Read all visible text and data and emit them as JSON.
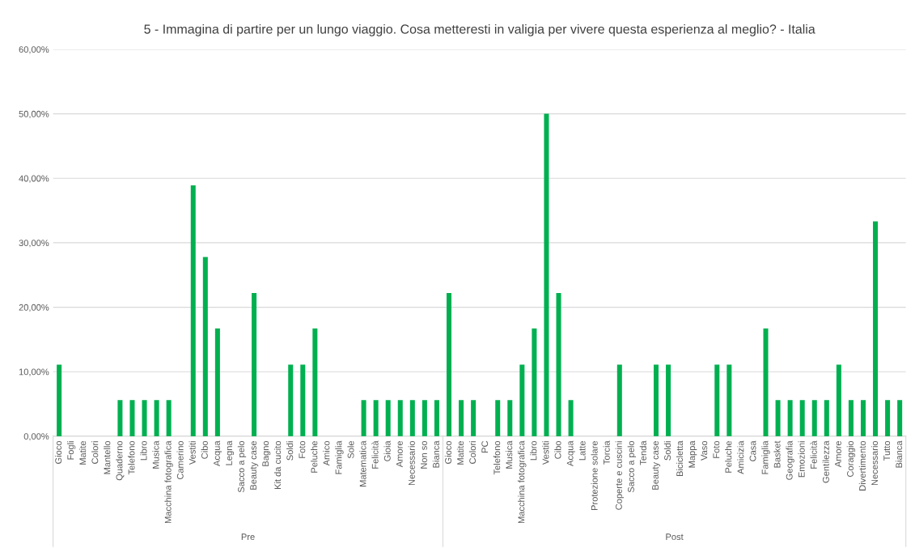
{
  "chart_data": {
    "type": "bar",
    "title": "5 - Immagina di partire per un lungo viaggio. Cosa metteresti in valigia per vivere questa esperienza al meglio? - Italia",
    "categories": [
      "Gioco",
      "Fogli",
      "Matite",
      "Colori",
      "Mantello",
      "Quaderno",
      "Telefono",
      "Libro",
      "Musica",
      "Macchina fotografica",
      "Camerino",
      "Vestiti",
      "Cibo",
      "Acqua",
      "Legna",
      "Sacco a pelo",
      "Beauty case",
      "Bagno",
      "Kit da cucito",
      "Soldi",
      "Foto",
      "Peluche",
      "Amico",
      "Famiglia",
      "Sole",
      "Matematica",
      "Felicità",
      "Gioia",
      "Amore",
      "Necessario",
      "Non so",
      "Bianca",
      "Gioco",
      "Matite",
      "Colori",
      "PC",
      "Telefono",
      "Musica",
      "Macchina fotografica",
      "Libro",
      "Vestiti",
      "Cibo",
      "Acqua",
      "Latte",
      "Protezione solare",
      "Torcia",
      "Coperte e cuscini",
      "Sacco a pelo",
      "Tenda",
      "Beauty case",
      "Soldi",
      "Bicicletta",
      "Mappa",
      "Vaso",
      "Foto",
      "Peluche",
      "Amicizia",
      "Casa",
      "Famiglia",
      "Basket",
      "Geografia",
      "Emozioni",
      "Felicità",
      "Gentilezza",
      "Amore",
      "Coraggio",
      "Divertimento",
      "Necessario",
      "Tutto",
      "Bianca"
    ],
    "values": [
      11.1,
      0,
      0,
      0,
      0,
      5.6,
      5.6,
      5.6,
      5.6,
      5.6,
      0,
      38.9,
      27.8,
      16.7,
      0,
      0,
      22.2,
      0,
      0,
      11.1,
      11.1,
      16.7,
      0,
      0,
      0,
      5.6,
      5.6,
      5.6,
      5.6,
      5.6,
      5.6,
      5.6,
      22.2,
      5.6,
      5.6,
      0,
      5.6,
      5.6,
      11.1,
      16.7,
      50,
      22.2,
      5.6,
      0,
      0,
      0,
      11.1,
      0,
      0,
      11.1,
      11.1,
      0,
      0,
      0,
      11.1,
      11.1,
      0,
      0,
      16.7,
      5.6,
      5.6,
      5.6,
      5.6,
      5.6,
      11.1,
      5.6,
      5.6,
      33.3,
      5.6,
      5.6
    ],
    "color": "#00b050",
    "ylim": [
      0,
      60
    ],
    "yticks": [
      {
        "value": 0,
        "label": "0,00%"
      },
      {
        "value": 10,
        "label": "10,00%"
      },
      {
        "value": 20,
        "label": "20,00%"
      },
      {
        "value": 30,
        "label": "30,00%"
      },
      {
        "value": 40,
        "label": "40,00%"
      },
      {
        "value": 50,
        "label": "50,00%"
      },
      {
        "value": 60,
        "label": "60,00%"
      }
    ],
    "grid": "y",
    "annotations": [
      "Pre",
      "Post"
    ]
  }
}
